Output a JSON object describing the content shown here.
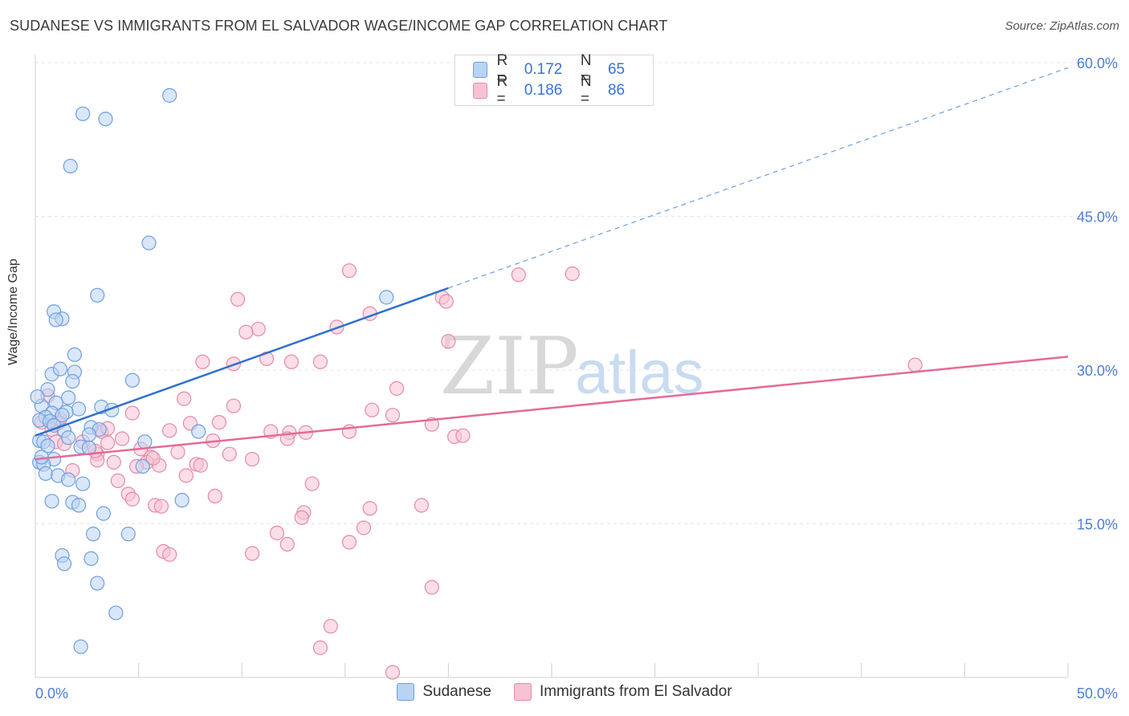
{
  "header": {
    "title": "SUDANESE VS IMMIGRANTS FROM EL SALVADOR WAGE/INCOME GAP CORRELATION CHART",
    "source": "Source: ZipAtlas.com"
  },
  "legend": {
    "r_label": "R =",
    "n_label": "N =",
    "series": [
      {
        "name": "Sudanese",
        "r": "0.172",
        "n": "65"
      },
      {
        "name": "Immigrants from El Salvador",
        "r": "0.186",
        "n": "86"
      }
    ]
  },
  "colors": {
    "blue_fill": "#b9d3f3",
    "blue_stroke": "#6f9fdf",
    "blue_line": "#2f6fd1",
    "pink_fill": "#f7c3d4",
    "pink_stroke": "#e58aa9",
    "pink_line": "#e36b97",
    "tick_label": "#4a7fd6",
    "grid": "#e3e3e3"
  },
  "watermark": {
    "zip": "ZIP",
    "atlas": "atlas"
  },
  "chart_data": {
    "type": "scatter",
    "title": "SUDANESE VS IMMIGRANTS FROM EL SALVADOR WAGE/INCOME GAP CORRELATION CHART",
    "xlabel": "",
    "ylabel": "Wage/Income Gap",
    "xlim": [
      0,
      50
    ],
    "ylim": [
      0,
      60
    ],
    "x_tick_labels": [
      "0.0%",
      "50.0%"
    ],
    "y_ticks": [
      15,
      30,
      45,
      60
    ],
    "y_tick_labels": [
      "15.0%",
      "30.0%",
      "45.0%",
      "60.0%"
    ],
    "grid": true,
    "series": [
      {
        "name": "Sudanese",
        "trend": {
          "x0": 0,
          "y0": 23.6,
          "x1": 20,
          "y1": 38.0,
          "x_dash_end": 50,
          "y_dash_end": 59.5
        },
        "points": [
          [
            6.5,
            56.8
          ],
          [
            2.3,
            55.0
          ],
          [
            3.4,
            54.5
          ],
          [
            1.7,
            49.9
          ],
          [
            5.5,
            42.4
          ],
          [
            3.0,
            37.3
          ],
          [
            17.0,
            37.1
          ],
          [
            0.9,
            35.7
          ],
          [
            1.3,
            35.0
          ],
          [
            1.0,
            34.9
          ],
          [
            1.9,
            31.5
          ],
          [
            1.9,
            29.8
          ],
          [
            0.8,
            29.6
          ],
          [
            4.7,
            29.0
          ],
          [
            1.2,
            30.1
          ],
          [
            1.8,
            28.9
          ],
          [
            0.6,
            28.1
          ],
          [
            1.6,
            27.3
          ],
          [
            1.0,
            26.8
          ],
          [
            0.3,
            26.5
          ],
          [
            2.1,
            26.2
          ],
          [
            3.2,
            26.4
          ],
          [
            3.7,
            26.1
          ],
          [
            1.5,
            25.9
          ],
          [
            0.8,
            25.8
          ],
          [
            1.3,
            25.6
          ],
          [
            0.5,
            25.4
          ],
          [
            0.2,
            25.1
          ],
          [
            0.7,
            25.0
          ],
          [
            0.9,
            24.6
          ],
          [
            2.7,
            24.4
          ],
          [
            3.1,
            24.2
          ],
          [
            1.4,
            24.1
          ],
          [
            7.9,
            24.0
          ],
          [
            2.6,
            23.7
          ],
          [
            1.6,
            23.4
          ],
          [
            0.2,
            23.1
          ],
          [
            0.4,
            23.0
          ],
          [
            5.3,
            23.0
          ],
          [
            0.6,
            22.6
          ],
          [
            2.2,
            22.5
          ],
          [
            2.6,
            22.4
          ],
          [
            0.9,
            21.3
          ],
          [
            0.2,
            21.0
          ],
          [
            0.4,
            20.8
          ],
          [
            5.2,
            20.6
          ],
          [
            0.5,
            19.9
          ],
          [
            1.1,
            19.7
          ],
          [
            1.6,
            19.3
          ],
          [
            2.3,
            18.9
          ],
          [
            7.1,
            17.3
          ],
          [
            0.8,
            17.2
          ],
          [
            1.8,
            17.1
          ],
          [
            2.1,
            16.8
          ],
          [
            3.3,
            16.0
          ],
          [
            2.8,
            14.0
          ],
          [
            4.5,
            14.0
          ],
          [
            1.3,
            11.9
          ],
          [
            2.7,
            11.6
          ],
          [
            1.4,
            11.1
          ],
          [
            3.0,
            9.2
          ],
          [
            3.9,
            6.3
          ],
          [
            2.2,
            3.0
          ],
          [
            0.1,
            27.4
          ],
          [
            0.3,
            21.5
          ]
        ]
      },
      {
        "name": "Immigrants from El Salvador",
        "trend": {
          "x0": 0,
          "y0": 21.3,
          "x1": 50,
          "y1": 31.3
        },
        "points": [
          [
            15.2,
            39.7
          ],
          [
            23.4,
            39.3
          ],
          [
            26.0,
            39.4
          ],
          [
            19.7,
            37.1
          ],
          [
            19.9,
            36.7
          ],
          [
            9.8,
            36.9
          ],
          [
            16.2,
            35.5
          ],
          [
            10.8,
            34.0
          ],
          [
            10.2,
            33.7
          ],
          [
            14.6,
            34.2
          ],
          [
            20.0,
            32.8
          ],
          [
            8.1,
            30.8
          ],
          [
            9.6,
            30.6
          ],
          [
            11.2,
            31.1
          ],
          [
            12.4,
            30.8
          ],
          [
            13.8,
            30.8
          ],
          [
            17.5,
            28.2
          ],
          [
            42.6,
            30.5
          ],
          [
            7.2,
            27.2
          ],
          [
            9.6,
            26.5
          ],
          [
            16.3,
            26.1
          ],
          [
            0.6,
            27.5
          ],
          [
            4.7,
            25.8
          ],
          [
            17.3,
            25.6
          ],
          [
            0.3,
            24.9
          ],
          [
            1.1,
            24.8
          ],
          [
            7.5,
            24.8
          ],
          [
            8.9,
            24.9
          ],
          [
            19.2,
            24.7
          ],
          [
            3.2,
            24.0
          ],
          [
            6.5,
            24.1
          ],
          [
            3.5,
            24.3
          ],
          [
            11.4,
            24.0
          ],
          [
            12.3,
            23.9
          ],
          [
            13.1,
            23.9
          ],
          [
            15.2,
            24.0
          ],
          [
            4.2,
            23.3
          ],
          [
            8.6,
            23.1
          ],
          [
            12.2,
            23.3
          ],
          [
            20.3,
            23.5
          ],
          [
            20.7,
            23.6
          ],
          [
            1.0,
            23.0
          ],
          [
            1.4,
            22.8
          ],
          [
            3.5,
            22.9
          ],
          [
            5.1,
            22.3
          ],
          [
            3.0,
            21.8
          ],
          [
            3.0,
            21.2
          ],
          [
            5.6,
            21.5
          ],
          [
            6.9,
            22.0
          ],
          [
            9.4,
            21.8
          ],
          [
            10.5,
            21.3
          ],
          [
            5.4,
            21.0
          ],
          [
            7.8,
            20.8
          ],
          [
            8.0,
            20.7
          ],
          [
            3.8,
            21.0
          ],
          [
            6.0,
            20.7
          ],
          [
            1.8,
            20.2
          ],
          [
            7.3,
            19.7
          ],
          [
            4.0,
            19.2
          ],
          [
            13.4,
            18.9
          ],
          [
            4.5,
            17.9
          ],
          [
            8.7,
            17.7
          ],
          [
            4.7,
            17.4
          ],
          [
            5.8,
            16.8
          ],
          [
            6.1,
            16.7
          ],
          [
            13.0,
            16.1
          ],
          [
            12.9,
            15.6
          ],
          [
            16.2,
            16.5
          ],
          [
            18.7,
            16.8
          ],
          [
            15.9,
            14.6
          ],
          [
            11.7,
            14.1
          ],
          [
            12.2,
            13.0
          ],
          [
            15.2,
            13.2
          ],
          [
            6.2,
            12.3
          ],
          [
            6.5,
            12.0
          ],
          [
            10.5,
            12.1
          ],
          [
            19.2,
            8.8
          ],
          [
            14.3,
            5.0
          ],
          [
            13.8,
            2.9
          ],
          [
            17.3,
            0.5
          ],
          [
            1.2,
            25.2
          ],
          [
            0.8,
            24.2
          ],
          [
            2.3,
            23.0
          ],
          [
            5.7,
            21.4
          ],
          [
            2.9,
            22.1
          ],
          [
            4.9,
            20.6
          ]
        ]
      }
    ]
  }
}
